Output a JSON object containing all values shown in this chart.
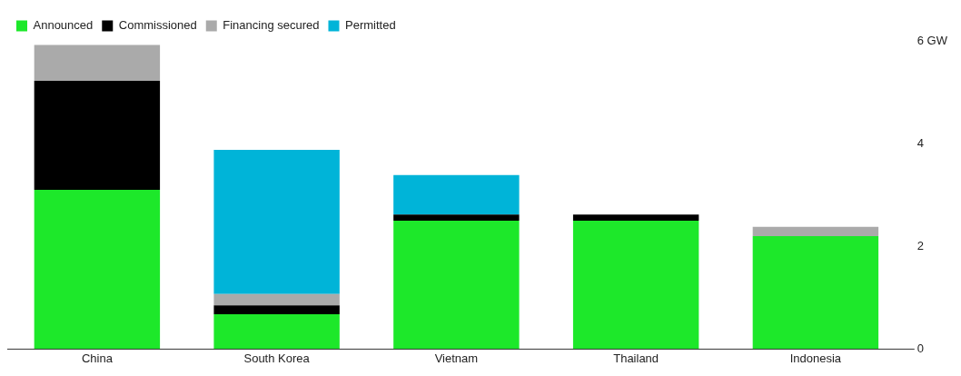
{
  "chart_data": {
    "type": "bar",
    "stacked": true,
    "categories": [
      "China",
      "South Korea",
      "Vietnam",
      "Thailand",
      "Indonesia"
    ],
    "series": [
      {
        "name": "Announced",
        "color": "#1de82a",
        "values": [
          3.1,
          0.68,
          2.5,
          2.5,
          2.2
        ]
      },
      {
        "name": "Commissioned",
        "color": "#000000",
        "values": [
          2.12,
          0.17,
          0.12,
          0.12,
          null
        ]
      },
      {
        "name": "Financing secured",
        "color": "#aaaaaa",
        "values": [
          0.7,
          0.22,
          null,
          null,
          0.18
        ]
      },
      {
        "name": "Permitted",
        "color": "#00b4d8",
        "values": [
          null,
          2.81,
          0.77,
          null,
          null
        ]
      }
    ],
    "ylim": [
      0,
      6
    ],
    "yticks": [
      0,
      2,
      4,
      {
        "value": 6,
        "label": "6 GW"
      }
    ],
    "grid": false,
    "legend": "top left"
  }
}
